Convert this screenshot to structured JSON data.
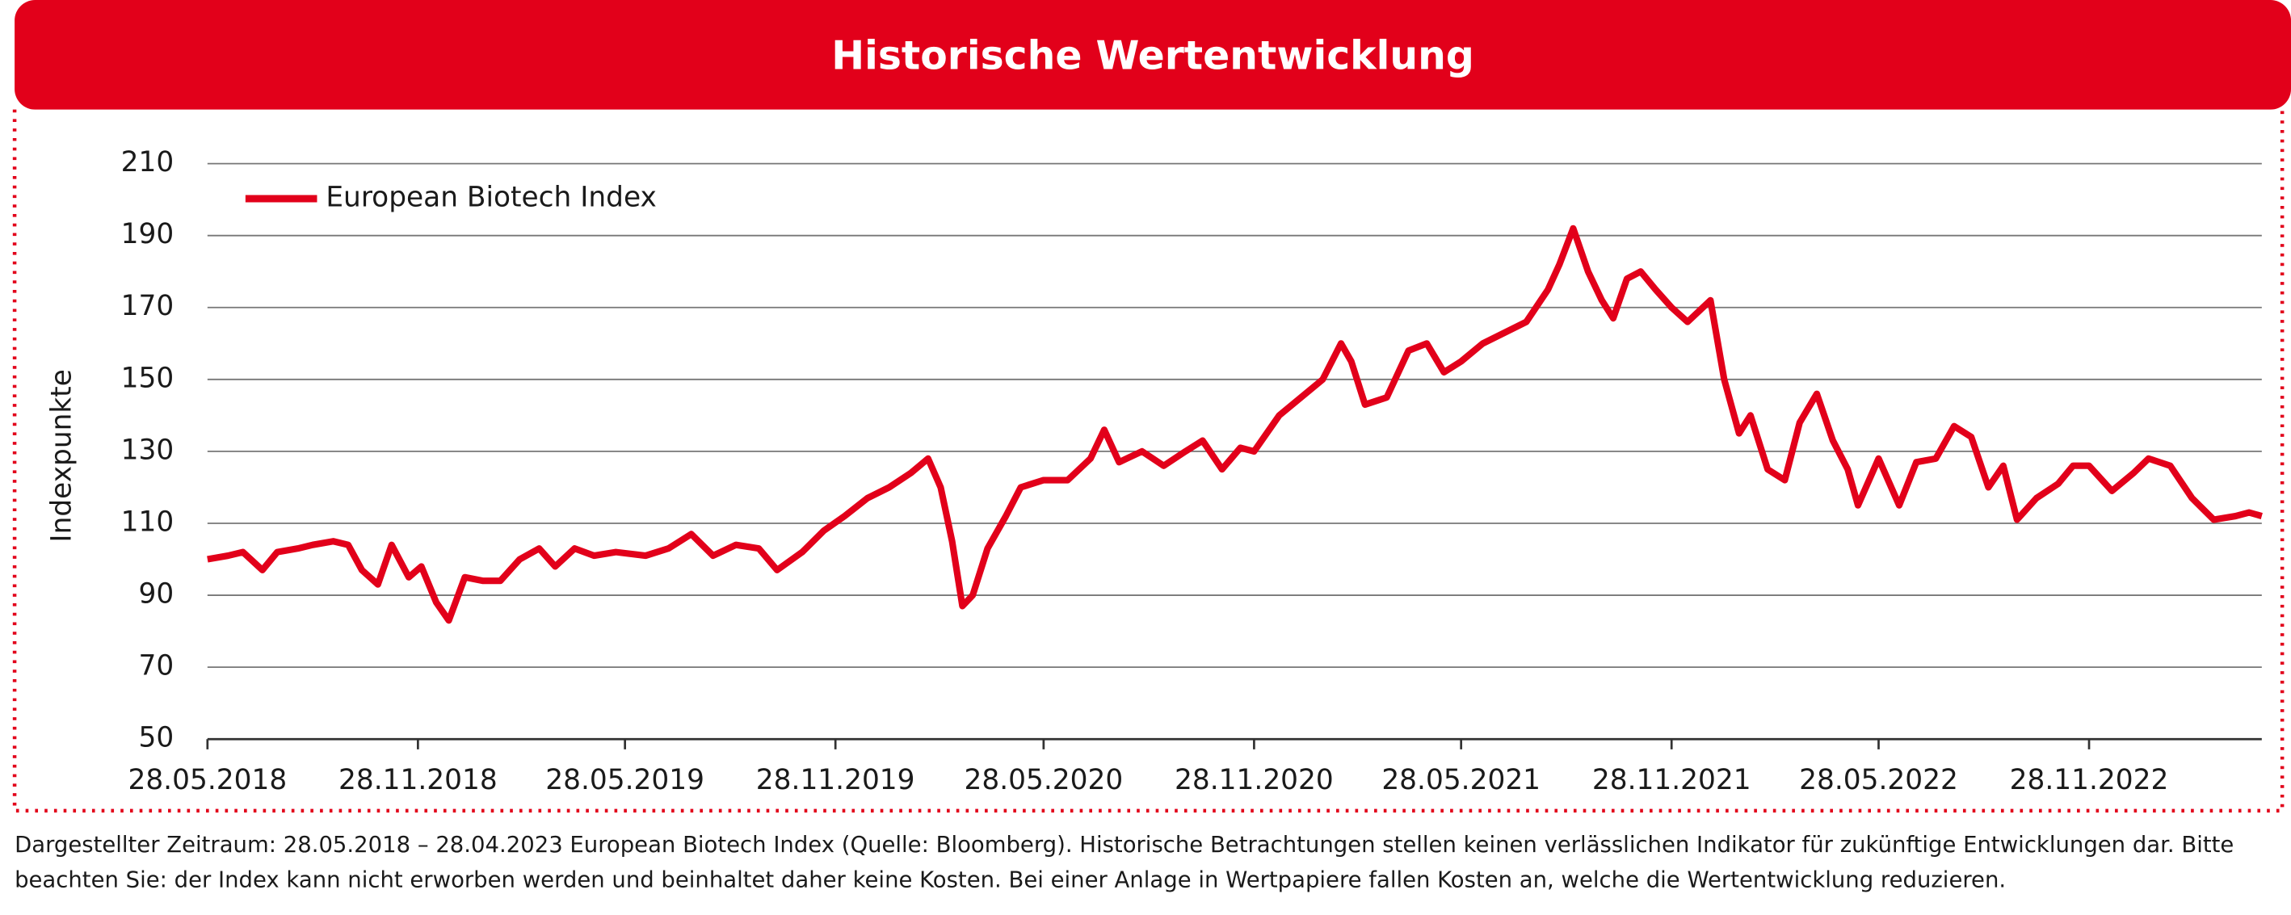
{
  "chart_data": {
    "type": "line",
    "title": "Historische Wertentwicklung",
    "y_label": "Indexpunkte",
    "legend": "upper left",
    "grid": true,
    "ylim": [
      50,
      210
    ],
    "yticks": [
      50,
      70,
      90,
      110,
      130,
      150,
      170,
      190,
      210
    ],
    "xlim": [
      "28.05.2018",
      "28.04.2023"
    ],
    "xticks": [
      "28.05.2018",
      "28.11.2018",
      "28.05.2019",
      "28.11.2019",
      "28.05.2020",
      "28.11.2020",
      "28.05.2021",
      "28.11.2021",
      "28.05.2022",
      "28.11.2022"
    ],
    "x": [
      "28.05.2018",
      "15.06.2018",
      "28.06.2018",
      "15.07.2018",
      "28.07.2018",
      "15.08.2018",
      "28.08.2018",
      "15.09.2018",
      "28.09.2018",
      "10.10.2018",
      "24.10.2018",
      "05.11.2018",
      "20.11.2018",
      "01.12.2018",
      "14.12.2018",
      "25.12.2018",
      "08.01.2019",
      "24.01.2019",
      "08.02.2019",
      "25.02.2019",
      "14.03.2019",
      "28.03.2019",
      "14.04.2019",
      "01.05.2019",
      "20.05.2019",
      "15.06.2019",
      "05.07.2019",
      "25.07.2019",
      "13.08.2019",
      "02.09.2019",
      "22.09.2019",
      "08.10.2019",
      "30.10.2019",
      "18.11.2019",
      "06.12.2019",
      "26.12.2019",
      "14.01.2020",
      "02.02.2020",
      "17.02.2020",
      "28.02.2020",
      "09.03.2020",
      "18.03.2020",
      "27.03.2020",
      "09.04.2020",
      "25.04.2020",
      "08.05.2020",
      "28.05.2020",
      "18.06.2020",
      "08.07.2020",
      "20.07.2020",
      "02.08.2020",
      "22.08.2020",
      "10.09.2020",
      "29.09.2020",
      "14.10.2020",
      "31.10.2020",
      "16.11.2020",
      "28.11.2020",
      "20.12.2020",
      "08.01.2021",
      "27.01.2021",
      "12.02.2021",
      "21.02.2021",
      "05.03.2021",
      "24.03.2021",
      "12.04.2021",
      "28.04.2021",
      "13.05.2021",
      "28.05.2021",
      "16.06.2021",
      "05.07.2021",
      "24.07.2021",
      "12.08.2021",
      "22.08.2021",
      "03.09.2021",
      "16.09.2021",
      "28.09.2021",
      "08.10.2021",
      "20.10.2021",
      "01.11.2021",
      "14.11.2021",
      "28.11.2021",
      "12.12.2021",
      "01.01.2022",
      "13.01.2022",
      "26.01.2022",
      "05.02.2022",
      "20.02.2022",
      "07.03.2022",
      "20.03.2022",
      "04.04.2022",
      "18.04.2022",
      "01.05.2022",
      "10.05.2022",
      "28.05.2022",
      "15.06.2022",
      "30.06.2022",
      "17.07.2022",
      "02.08.2022",
      "17.08.2022",
      "01.09.2022",
      "14.09.2022",
      "26.09.2022",
      "13.10.2022",
      "01.11.2022",
      "14.11.2022",
      "28.11.2022",
      "18.12.2022",
      "06.01.2023",
      "19.01.2023",
      "07.02.2023",
      "26.02.2023",
      "17.03.2023",
      "05.04.2023",
      "17.04.2023",
      "28.04.2023"
    ],
    "series": [
      {
        "name": "European Biotech Index",
        "color": "#e2001a",
        "values": [
          100,
          101,
          102,
          97,
          102,
          103,
          104,
          105,
          104,
          97,
          93,
          104,
          95,
          98,
          88,
          83,
          95,
          94,
          94,
          100,
          103,
          98,
          103,
          101,
          102,
          101,
          103,
          107,
          101,
          104,
          103,
          97,
          102,
          108,
          112,
          117,
          120,
          124,
          128,
          120,
          105,
          87,
          90,
          103,
          112,
          120,
          122,
          122,
          128,
          136,
          127,
          130,
          126,
          130,
          133,
          125,
          131,
          130,
          140,
          145,
          150,
          160,
          155,
          143,
          145,
          158,
          160,
          152,
          155,
          160,
          163,
          166,
          175,
          182,
          192,
          180,
          172,
          167,
          178,
          180,
          175,
          170,
          166,
          172,
          150,
          135,
          140,
          125,
          122,
          138,
          146,
          133,
          125,
          115,
          128,
          115,
          127,
          128,
          137,
          134,
          120,
          126,
          111,
          117,
          121,
          126,
          126,
          119,
          124,
          128,
          126,
          117,
          111,
          112,
          113,
          112
        ]
      }
    ],
    "footnote": [
      "Dargestellter Zeitraum: 28.05.2018 – 28.04.2023 European Biotech Index (Quelle: Bloomberg). Historische Betrachtungen stellen keinen verlässlichen Indikator für zukünftige Entwicklungen dar. Bitte",
      "beachten Sie: der Index kann nicht erworben werden und beinhaltet daher keine Kosten. Bei einer Anlage in Wertpapiere fallen Kosten an, welche die Wertentwicklung reduzieren."
    ]
  }
}
